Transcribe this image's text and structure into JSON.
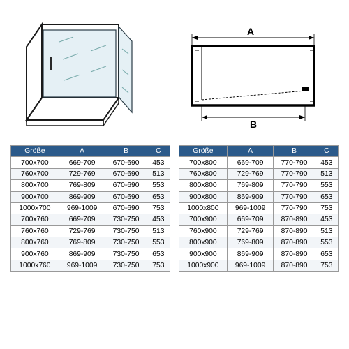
{
  "diagram": {
    "label_A": "A",
    "label_B": "B"
  },
  "tables": {
    "headers": [
      "Größe",
      "A",
      "B",
      "C"
    ],
    "header_bg": "#2b5a8a",
    "header_fg": "#ffffff",
    "row_alt_bg": "#f2f5f8",
    "border_color": "#999999",
    "fontsize": 10.3,
    "left": {
      "rows": [
        [
          "700x700",
          "669-709",
          "670-690",
          "453"
        ],
        [
          "760x700",
          "729-769",
          "670-690",
          "513"
        ],
        [
          "800x700",
          "769-809",
          "670-690",
          "553"
        ],
        [
          "900x700",
          "869-909",
          "670-690",
          "653"
        ],
        [
          "1000x700",
          "969-1009",
          "670-690",
          "753"
        ],
        [
          "700x760",
          "669-709",
          "730-750",
          "453"
        ],
        [
          "760x760",
          "729-769",
          "730-750",
          "513"
        ],
        [
          "800x760",
          "769-809",
          "730-750",
          "553"
        ],
        [
          "900x760",
          "869-909",
          "730-750",
          "653"
        ],
        [
          "1000x760",
          "969-1009",
          "730-750",
          "753"
        ]
      ]
    },
    "right": {
      "rows": [
        [
          "700x800",
          "669-709",
          "770-790",
          "453"
        ],
        [
          "760x800",
          "729-769",
          "770-790",
          "513"
        ],
        [
          "800x800",
          "769-809",
          "770-790",
          "553"
        ],
        [
          "900x800",
          "869-909",
          "770-790",
          "653"
        ],
        [
          "1000x800",
          "969-1009",
          "770-790",
          "753"
        ],
        [
          "700x900",
          "669-709",
          "870-890",
          "453"
        ],
        [
          "760x900",
          "729-769",
          "870-890",
          "513"
        ],
        [
          "800x900",
          "769-809",
          "870-890",
          "553"
        ],
        [
          "900x900",
          "869-909",
          "870-890",
          "653"
        ],
        [
          "1000x900",
          "969-1009",
          "870-890",
          "753"
        ]
      ]
    }
  }
}
